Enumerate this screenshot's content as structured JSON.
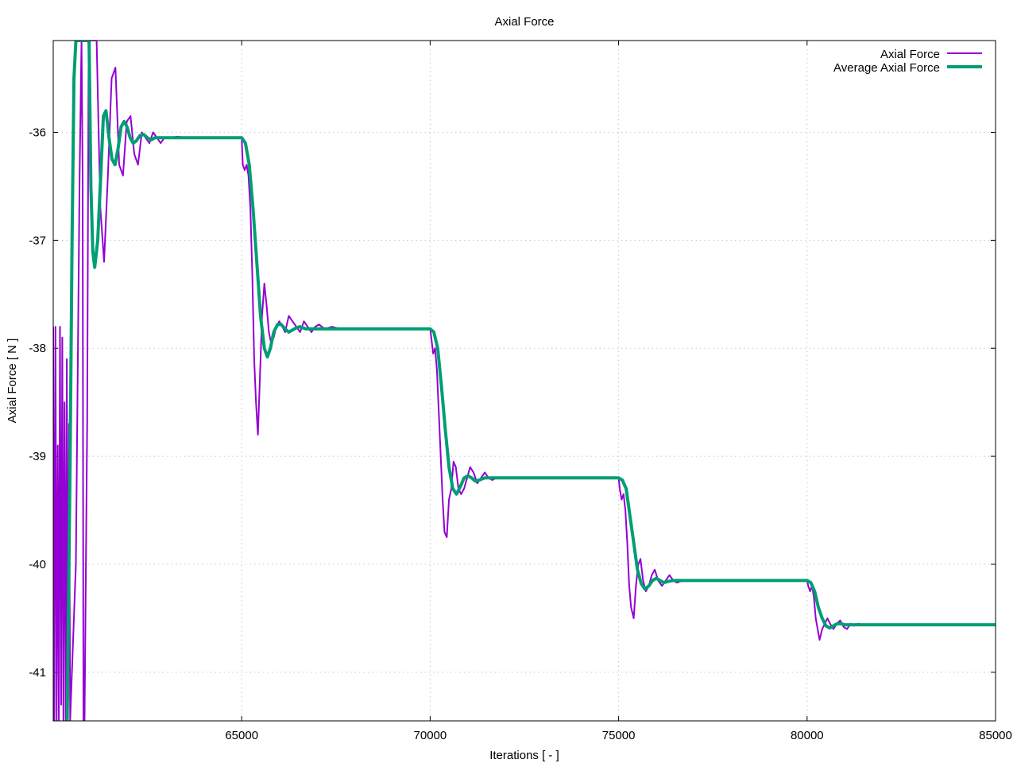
{
  "chart_data": {
    "type": "line",
    "title": "Axial Force",
    "xlabel": "Iterations [ - ]",
    "ylabel": "Axial Force [ N ]",
    "xlim": [
      60000,
      85000
    ],
    "ylim": [
      -41.45,
      -35.15
    ],
    "xticks": [
      65000,
      70000,
      75000,
      80000,
      85000
    ],
    "yticks": [
      -36,
      -37,
      -38,
      -39,
      -40,
      -41
    ],
    "grid": true,
    "legend_position": "top-right",
    "series": [
      {
        "name": "Axial Force",
        "color": "#9400d3",
        "points": [
          [
            60000,
            -37.8
          ],
          [
            60030,
            -41.45
          ],
          [
            60060,
            -37.8
          ],
          [
            60090,
            -41.45
          ],
          [
            60120,
            -38.9
          ],
          [
            60150,
            -41.45
          ],
          [
            60180,
            -37.8
          ],
          [
            60210,
            -41.3
          ],
          [
            60240,
            -37.9
          ],
          [
            60270,
            -41.45
          ],
          [
            60300,
            -38.5
          ],
          [
            60330,
            -41.45
          ],
          [
            60360,
            -38.1
          ],
          [
            60390,
            -41.3
          ],
          [
            60420,
            -38.7
          ],
          [
            60450,
            -41.45
          ],
          [
            60600,
            -40.0
          ],
          [
            60700,
            -36.4
          ],
          [
            60750,
            -35.15
          ],
          [
            60780,
            -36.4
          ],
          [
            60800,
            -41.45
          ],
          [
            60830,
            -41.45
          ],
          [
            60900,
            -38.7
          ],
          [
            60940,
            -35.15
          ],
          [
            61050,
            -35.15
          ],
          [
            61150,
            -35.15
          ],
          [
            61250,
            -36.7
          ],
          [
            61350,
            -37.2
          ],
          [
            61450,
            -36.4
          ],
          [
            61550,
            -35.5
          ],
          [
            61650,
            -35.4
          ],
          [
            61750,
            -36.3
          ],
          [
            61850,
            -36.4
          ],
          [
            61950,
            -35.9
          ],
          [
            62050,
            -35.85
          ],
          [
            62150,
            -36.2
          ],
          [
            62250,
            -36.3
          ],
          [
            62350,
            -36.0
          ],
          [
            62450,
            -36.05
          ],
          [
            62550,
            -36.1
          ],
          [
            62650,
            -36.0
          ],
          [
            62750,
            -36.05
          ],
          [
            62850,
            -36.1
          ],
          [
            62950,
            -36.05
          ],
          [
            63100,
            -36.05
          ],
          [
            63300,
            -36.04
          ],
          [
            63500,
            -36.05
          ],
          [
            63800,
            -36.05
          ],
          [
            64200,
            -36.05
          ],
          [
            64600,
            -36.05
          ],
          [
            65000,
            -36.05
          ],
          [
            65030,
            -36.3
          ],
          [
            65080,
            -36.35
          ],
          [
            65130,
            -36.3
          ],
          [
            65180,
            -36.4
          ],
          [
            65230,
            -36.7
          ],
          [
            65280,
            -37.3
          ],
          [
            65330,
            -38.1
          ],
          [
            65380,
            -38.5
          ],
          [
            65430,
            -38.8
          ],
          [
            65480,
            -38.3
          ],
          [
            65540,
            -37.7
          ],
          [
            65600,
            -37.4
          ],
          [
            65660,
            -37.6
          ],
          [
            65720,
            -37.85
          ],
          [
            65780,
            -37.95
          ],
          [
            65850,
            -37.9
          ],
          [
            65920,
            -37.8
          ],
          [
            66000,
            -37.75
          ],
          [
            66080,
            -37.8
          ],
          [
            66150,
            -37.85
          ],
          [
            66250,
            -37.7
          ],
          [
            66350,
            -37.75
          ],
          [
            66450,
            -37.8
          ],
          [
            66550,
            -37.85
          ],
          [
            66650,
            -37.75
          ],
          [
            66750,
            -37.8
          ],
          [
            66850,
            -37.85
          ],
          [
            66950,
            -37.8
          ],
          [
            67050,
            -37.78
          ],
          [
            67200,
            -37.82
          ],
          [
            67400,
            -37.8
          ],
          [
            67600,
            -37.82
          ],
          [
            67900,
            -37.82
          ],
          [
            68300,
            -37.82
          ],
          [
            68800,
            -37.82
          ],
          [
            69300,
            -37.82
          ],
          [
            70000,
            -37.82
          ],
          [
            70030,
            -37.9
          ],
          [
            70080,
            -38.05
          ],
          [
            70130,
            -38.0
          ],
          [
            70180,
            -38.2
          ],
          [
            70230,
            -38.6
          ],
          [
            70280,
            -39.0
          ],
          [
            70330,
            -39.4
          ],
          [
            70380,
            -39.7
          ],
          [
            70440,
            -39.75
          ],
          [
            70500,
            -39.4
          ],
          [
            70560,
            -39.3
          ],
          [
            70620,
            -39.05
          ],
          [
            70680,
            -39.1
          ],
          [
            70750,
            -39.3
          ],
          [
            70820,
            -39.35
          ],
          [
            70900,
            -39.3
          ],
          [
            70980,
            -39.2
          ],
          [
            71060,
            -39.1
          ],
          [
            71150,
            -39.15
          ],
          [
            71250,
            -39.25
          ],
          [
            71350,
            -39.2
          ],
          [
            71450,
            -39.15
          ],
          [
            71550,
            -39.2
          ],
          [
            71650,
            -39.22
          ],
          [
            71750,
            -39.2
          ],
          [
            71900,
            -39.2
          ],
          [
            72100,
            -39.2
          ],
          [
            72400,
            -39.2
          ],
          [
            72800,
            -39.2
          ],
          [
            73300,
            -39.2
          ],
          [
            73900,
            -39.2
          ],
          [
            74500,
            -39.2
          ],
          [
            75000,
            -39.2
          ],
          [
            75030,
            -39.3
          ],
          [
            75080,
            -39.4
          ],
          [
            75130,
            -39.35
          ],
          [
            75180,
            -39.5
          ],
          [
            75230,
            -39.8
          ],
          [
            75280,
            -40.2
          ],
          [
            75330,
            -40.4
          ],
          [
            75400,
            -40.5
          ],
          [
            75460,
            -40.2
          ],
          [
            75520,
            -40.0
          ],
          [
            75580,
            -39.95
          ],
          [
            75650,
            -40.15
          ],
          [
            75720,
            -40.25
          ],
          [
            75800,
            -40.2
          ],
          [
            75880,
            -40.1
          ],
          [
            75960,
            -40.05
          ],
          [
            76050,
            -40.15
          ],
          [
            76150,
            -40.2
          ],
          [
            76250,
            -40.15
          ],
          [
            76350,
            -40.1
          ],
          [
            76450,
            -40.15
          ],
          [
            76550,
            -40.17
          ],
          [
            76700,
            -40.15
          ],
          [
            76900,
            -40.15
          ],
          [
            77200,
            -40.15
          ],
          [
            77600,
            -40.15
          ],
          [
            78100,
            -40.15
          ],
          [
            78700,
            -40.15
          ],
          [
            79300,
            -40.15
          ],
          [
            80000,
            -40.15
          ],
          [
            80030,
            -40.2
          ],
          [
            80080,
            -40.25
          ],
          [
            80130,
            -40.2
          ],
          [
            80180,
            -40.3
          ],
          [
            80230,
            -40.5
          ],
          [
            80280,
            -40.6
          ],
          [
            80330,
            -40.7
          ],
          [
            80400,
            -40.6
          ],
          [
            80470,
            -40.55
          ],
          [
            80540,
            -40.5
          ],
          [
            80610,
            -40.55
          ],
          [
            80700,
            -40.6
          ],
          [
            80790,
            -40.55
          ],
          [
            80880,
            -40.52
          ],
          [
            80970,
            -40.58
          ],
          [
            81060,
            -40.6
          ],
          [
            81150,
            -40.55
          ],
          [
            81250,
            -40.57
          ],
          [
            81350,
            -40.55
          ],
          [
            81500,
            -40.56
          ]
        ]
      },
      {
        "name": "Average Axial Force",
        "color": "#009e73",
        "points": [
          [
            60370,
            -41.45
          ],
          [
            60450,
            -39.0
          ],
          [
            60500,
            -37.0
          ],
          [
            60550,
            -35.5
          ],
          [
            60600,
            -35.15
          ],
          [
            60850,
            -35.15
          ],
          [
            60950,
            -35.15
          ],
          [
            61000,
            -36.5
          ],
          [
            61050,
            -37.1
          ],
          [
            61100,
            -37.25
          ],
          [
            61180,
            -37.0
          ],
          [
            61260,
            -36.4
          ],
          [
            61330,
            -35.85
          ],
          [
            61400,
            -35.8
          ],
          [
            61480,
            -36.05
          ],
          [
            61560,
            -36.25
          ],
          [
            61640,
            -36.3
          ],
          [
            61720,
            -36.15
          ],
          [
            61800,
            -35.95
          ],
          [
            61880,
            -35.9
          ],
          [
            61960,
            -35.95
          ],
          [
            62040,
            -36.05
          ],
          [
            62120,
            -36.1
          ],
          [
            62200,
            -36.08
          ],
          [
            62300,
            -36.03
          ],
          [
            62400,
            -36.02
          ],
          [
            62500,
            -36.05
          ],
          [
            62600,
            -36.07
          ],
          [
            62700,
            -36.05
          ],
          [
            62850,
            -36.05
          ],
          [
            63100,
            -36.05
          ],
          [
            63500,
            -36.05
          ],
          [
            64000,
            -36.05
          ],
          [
            64500,
            -36.05
          ],
          [
            65000,
            -36.05
          ],
          [
            65100,
            -36.1
          ],
          [
            65200,
            -36.3
          ],
          [
            65300,
            -36.7
          ],
          [
            65400,
            -37.2
          ],
          [
            65500,
            -37.7
          ],
          [
            65600,
            -38.0
          ],
          [
            65680,
            -38.08
          ],
          [
            65760,
            -38.0
          ],
          [
            65850,
            -37.85
          ],
          [
            65950,
            -37.78
          ],
          [
            66050,
            -37.78
          ],
          [
            66150,
            -37.82
          ],
          [
            66250,
            -37.85
          ],
          [
            66350,
            -37.83
          ],
          [
            66450,
            -37.81
          ],
          [
            66550,
            -37.8
          ],
          [
            66700,
            -37.82
          ],
          [
            67000,
            -37.82
          ],
          [
            67500,
            -37.82
          ],
          [
            68000,
            -37.82
          ],
          [
            68500,
            -37.82
          ],
          [
            69000,
            -37.82
          ],
          [
            69500,
            -37.82
          ],
          [
            70000,
            -37.82
          ],
          [
            70100,
            -37.85
          ],
          [
            70200,
            -38.0
          ],
          [
            70300,
            -38.35
          ],
          [
            70400,
            -38.75
          ],
          [
            70500,
            -39.1
          ],
          [
            70600,
            -39.3
          ],
          [
            70700,
            -39.35
          ],
          [
            70800,
            -39.28
          ],
          [
            70900,
            -39.2
          ],
          [
            71000,
            -39.18
          ],
          [
            71100,
            -39.2
          ],
          [
            71200,
            -39.23
          ],
          [
            71300,
            -39.22
          ],
          [
            71450,
            -39.2
          ],
          [
            71650,
            -39.2
          ],
          [
            72000,
            -39.2
          ],
          [
            72500,
            -39.2
          ],
          [
            73000,
            -39.2
          ],
          [
            73500,
            -39.2
          ],
          [
            74000,
            -39.2
          ],
          [
            74500,
            -39.2
          ],
          [
            75000,
            -39.2
          ],
          [
            75100,
            -39.22
          ],
          [
            75200,
            -39.3
          ],
          [
            75300,
            -39.55
          ],
          [
            75400,
            -39.8
          ],
          [
            75500,
            -40.05
          ],
          [
            75600,
            -40.18
          ],
          [
            75700,
            -40.23
          ],
          [
            75800,
            -40.2
          ],
          [
            75900,
            -40.15
          ],
          [
            76000,
            -40.13
          ],
          [
            76100,
            -40.15
          ],
          [
            76200,
            -40.17
          ],
          [
            76300,
            -40.16
          ],
          [
            76450,
            -40.15
          ],
          [
            76650,
            -40.15
          ],
          [
            77000,
            -40.15
          ],
          [
            77500,
            -40.15
          ],
          [
            78000,
            -40.15
          ],
          [
            78500,
            -40.15
          ],
          [
            79000,
            -40.15
          ],
          [
            79500,
            -40.15
          ],
          [
            80000,
            -40.15
          ],
          [
            80100,
            -40.17
          ],
          [
            80200,
            -40.25
          ],
          [
            80300,
            -40.4
          ],
          [
            80400,
            -40.5
          ],
          [
            80500,
            -40.57
          ],
          [
            80600,
            -40.59
          ],
          [
            80700,
            -40.57
          ],
          [
            80800,
            -40.55
          ],
          [
            80900,
            -40.55
          ],
          [
            81000,
            -40.56
          ],
          [
            81200,
            -40.56
          ],
          [
            81500,
            -40.56
          ],
          [
            82000,
            -40.56
          ],
          [
            82500,
            -40.56
          ],
          [
            83000,
            -40.56
          ],
          [
            83500,
            -40.56
          ],
          [
            84000,
            -40.56
          ],
          [
            84500,
            -40.56
          ],
          [
            85000,
            -40.56
          ]
        ]
      }
    ]
  }
}
